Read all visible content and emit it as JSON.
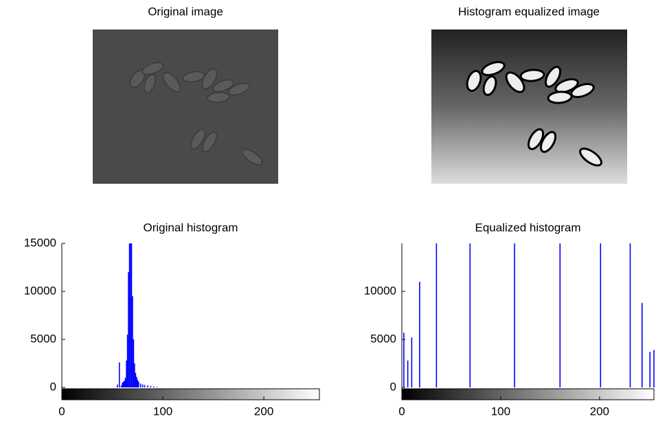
{
  "chart_data": [
    {
      "type": "image",
      "title": "Original image"
    },
    {
      "type": "image",
      "title": "Histogram equalized image"
    },
    {
      "type": "stem",
      "title": "Original histogram",
      "color": "#0000ff",
      "x": [
        55,
        57,
        59,
        60,
        61,
        62,
        63,
        64,
        65,
        66,
        67,
        68,
        69,
        70,
        71,
        72,
        73,
        74,
        75,
        76,
        78,
        80,
        82,
        85,
        88,
        91,
        94
      ],
      "values": [
        300,
        2600,
        200,
        500,
        600,
        700,
        1000,
        2800,
        5500,
        12000,
        15000,
        15000,
        15000,
        9500,
        5000,
        2500,
        1500,
        1100,
        800,
        600,
        400,
        300,
        250,
        200,
        150,
        100,
        50
      ],
      "xlim": [
        0,
        255
      ],
      "ylim": [
        0,
        15000
      ],
      "xticks": [
        0,
        100,
        200
      ],
      "yticks": [
        0,
        5000,
        10000,
        15000
      ]
    },
    {
      "type": "stem",
      "title": "Equalized histogram",
      "color": "#0000ff",
      "x": [
        2,
        6,
        10,
        18,
        35,
        69,
        114,
        160,
        201,
        231,
        243,
        251,
        255
      ],
      "values": [
        5700,
        2800,
        5200,
        11000,
        15000,
        15000,
        15000,
        15000,
        15000,
        15000,
        8800,
        3700,
        3900
      ],
      "xlim": [
        0,
        255
      ],
      "ylim": [
        0,
        15000
      ],
      "xticks": [
        0,
        100,
        200
      ],
      "yticks": [
        0,
        5000,
        10000
      ]
    }
  ]
}
